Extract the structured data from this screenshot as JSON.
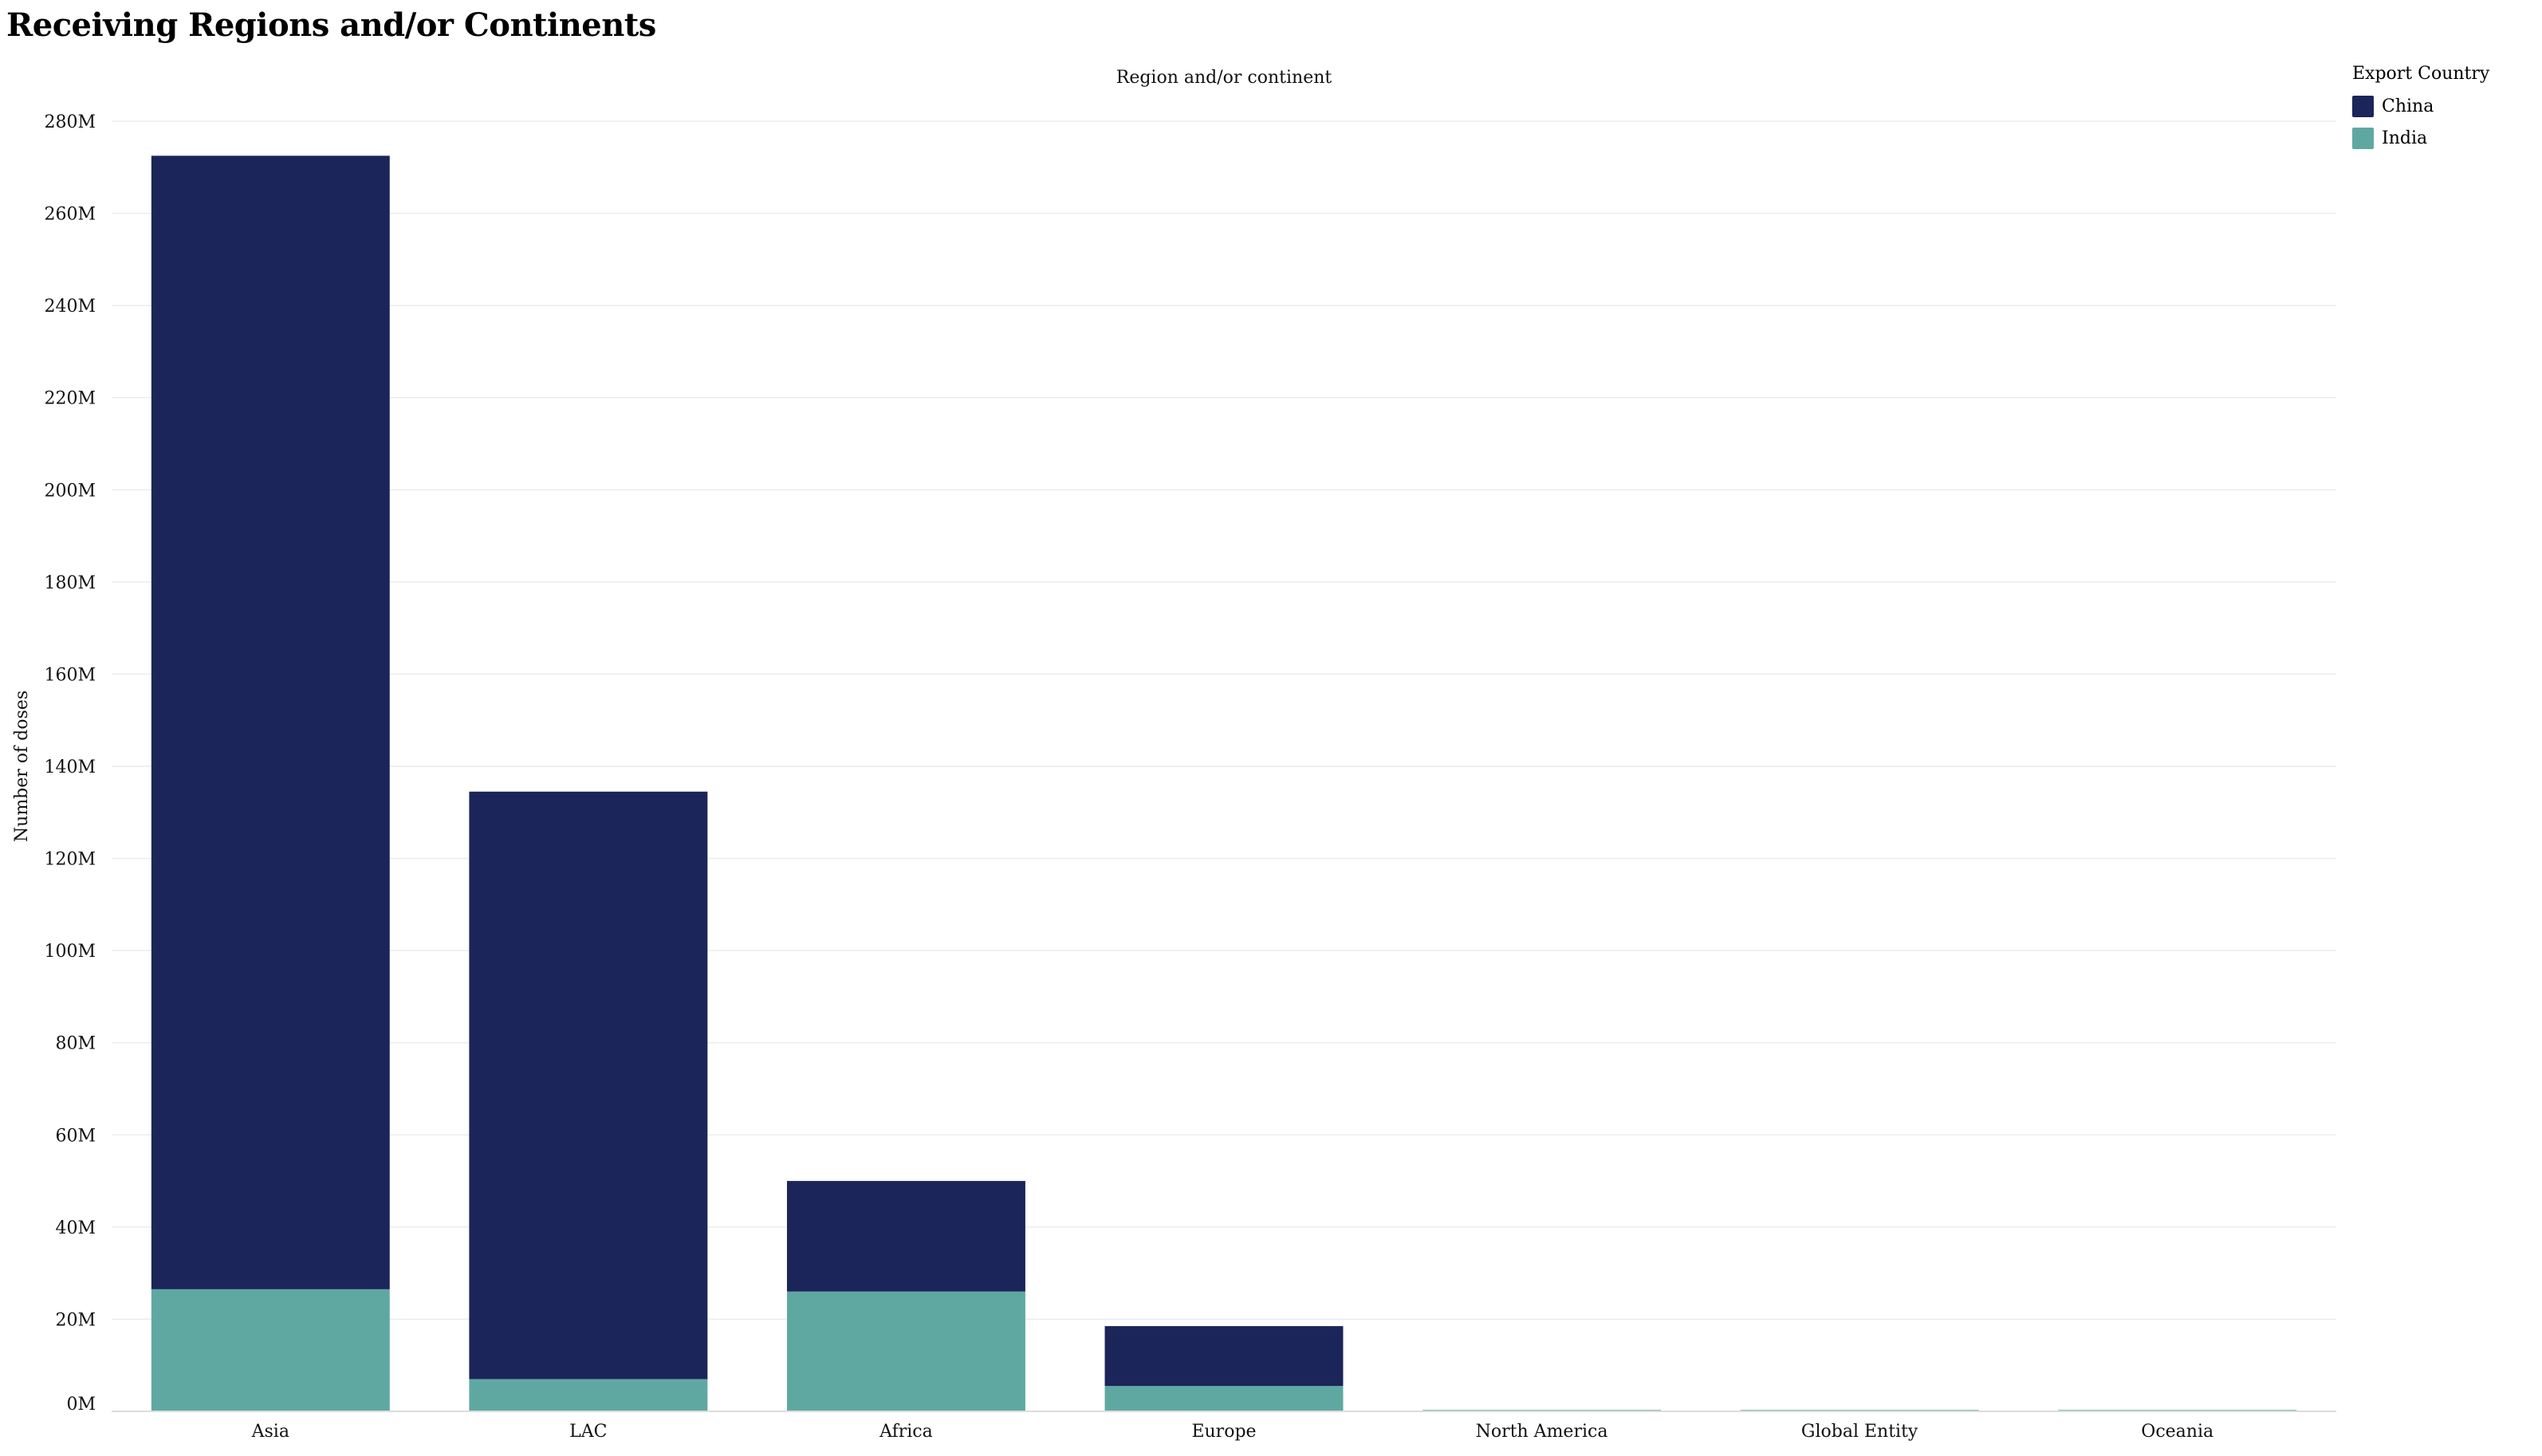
{
  "page_title": "Receiving Regions and/or Continents",
  "chart_data": {
    "type": "bar",
    "stacked": true,
    "title": "Receiving Regions and/or Continents",
    "xlabel": "Region and/or continent",
    "ylabel": "Number of doses",
    "categories": [
      "Asia",
      "LAC",
      "Africa",
      "Europe",
      "North America",
      "Global Entity",
      "Oceania"
    ],
    "series": [
      {
        "name": "India",
        "color": "#5fa8a2",
        "values": [
          26500000,
          7000000,
          26000000,
          5500000,
          300000,
          300000,
          300000
        ]
      },
      {
        "name": "China",
        "color": "#1b2559",
        "values": [
          246000000,
          127500000,
          24000000,
          13000000,
          0,
          0,
          0
        ]
      }
    ],
    "ylim": [
      0,
      280000000
    ],
    "yticks": [
      "0M",
      "20M",
      "40M",
      "60M",
      "80M",
      "100M",
      "120M",
      "140M",
      "160M",
      "180M",
      "200M",
      "220M",
      "240M",
      "260M",
      "280M"
    ],
    "grid": true,
    "legend": {
      "title": "Export Country",
      "entries": [
        "China",
        "India"
      ],
      "placement": "top-right"
    }
  }
}
